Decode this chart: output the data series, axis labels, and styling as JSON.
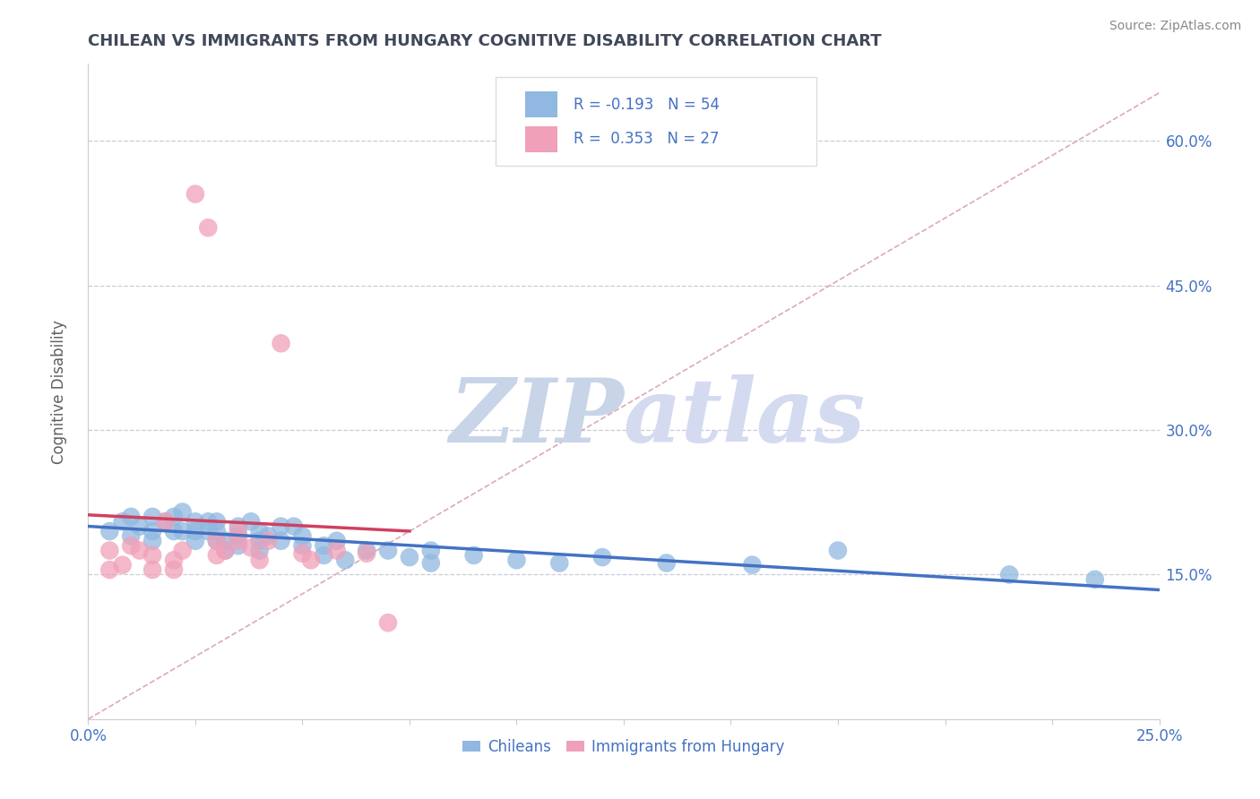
{
  "title": "CHILEAN VS IMMIGRANTS FROM HUNGARY COGNITIVE DISABILITY CORRELATION CHART",
  "source_text": "Source: ZipAtlas.com",
  "ylabel": "Cognitive Disability",
  "xlim": [
    0.0,
    0.25
  ],
  "ylim": [
    0.0,
    0.68
  ],
  "xtick_positions": [
    0.0,
    0.025,
    0.05,
    0.075,
    0.1,
    0.125,
    0.15,
    0.175,
    0.2,
    0.225,
    0.25
  ],
  "xtick_edge_labels": {
    "0": "0.0%",
    "10": "25.0%"
  },
  "ytick_positions": [
    0.15,
    0.3,
    0.45,
    0.6
  ],
  "ytick_labels": [
    "15.0%",
    "30.0%",
    "45.0%",
    "60.0%"
  ],
  "grid_color": "#c8ccd8",
  "chilean_color": "#90b8e0",
  "hungary_color": "#f0a0b8",
  "chilean_line_color": "#4472c4",
  "hungary_line_color": "#d04060",
  "diag_line_color": "#d8a0b0",
  "watermark_color": "#dde2ee",
  "watermark_zip_color": "#c8cfe8",
  "legend_R1": "-0.193",
  "legend_N1": "54",
  "legend_R2": "0.353",
  "legend_N2": "27",
  "legend_label1": "Chileans",
  "legend_label2": "Immigrants from Hungary",
  "title_color": "#404858",
  "axis_label_color": "#4472c4",
  "tick_color": "#4472c4",
  "source_color": "#888888",
  "chilean_scatter_x": [
    0.005,
    0.008,
    0.01,
    0.01,
    0.012,
    0.015,
    0.015,
    0.015,
    0.018,
    0.02,
    0.02,
    0.022,
    0.022,
    0.025,
    0.025,
    0.025,
    0.028,
    0.028,
    0.03,
    0.03,
    0.03,
    0.032,
    0.032,
    0.035,
    0.035,
    0.035,
    0.038,
    0.04,
    0.04,
    0.04,
    0.042,
    0.045,
    0.045,
    0.048,
    0.05,
    0.05,
    0.055,
    0.055,
    0.058,
    0.06,
    0.065,
    0.07,
    0.075,
    0.08,
    0.08,
    0.09,
    0.1,
    0.11,
    0.12,
    0.135,
    0.155,
    0.175,
    0.215,
    0.235
  ],
  "chilean_scatter_y": [
    0.195,
    0.205,
    0.21,
    0.19,
    0.2,
    0.21,
    0.195,
    0.185,
    0.205,
    0.21,
    0.195,
    0.215,
    0.195,
    0.205,
    0.195,
    0.185,
    0.205,
    0.195,
    0.205,
    0.195,
    0.185,
    0.185,
    0.175,
    0.2,
    0.19,
    0.18,
    0.205,
    0.195,
    0.185,
    0.175,
    0.19,
    0.2,
    0.185,
    0.2,
    0.19,
    0.18,
    0.18,
    0.17,
    0.185,
    0.165,
    0.175,
    0.175,
    0.168,
    0.175,
    0.162,
    0.17,
    0.165,
    0.162,
    0.168,
    0.162,
    0.16,
    0.175,
    0.15,
    0.145
  ],
  "hungary_scatter_x": [
    0.005,
    0.005,
    0.008,
    0.01,
    0.012,
    0.015,
    0.015,
    0.018,
    0.02,
    0.02,
    0.022,
    0.025,
    0.028,
    0.03,
    0.03,
    0.032,
    0.035,
    0.035,
    0.038,
    0.04,
    0.042,
    0.045,
    0.05,
    0.052,
    0.058,
    0.065,
    0.07
  ],
  "hungary_scatter_y": [
    0.175,
    0.155,
    0.16,
    0.18,
    0.175,
    0.17,
    0.155,
    0.205,
    0.165,
    0.155,
    0.175,
    0.545,
    0.51,
    0.185,
    0.17,
    0.175,
    0.195,
    0.185,
    0.178,
    0.165,
    0.185,
    0.39,
    0.172,
    0.165,
    0.175,
    0.172,
    0.1
  ]
}
